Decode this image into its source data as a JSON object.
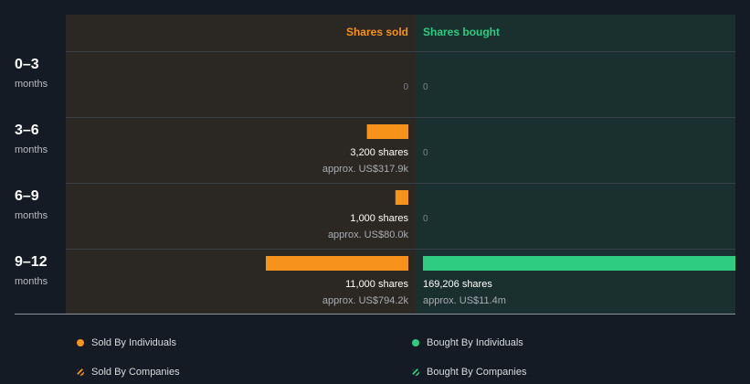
{
  "colors": {
    "background": "#151b24",
    "sold_panel": "#2b2722",
    "bought_panel": "#19302e",
    "sold": "#f7931a",
    "bought": "#2ecc80",
    "zero_text": "#7d8189",
    "shares_text": "#ffffff",
    "approx_text": "#a9adb4"
  },
  "chart_data": {
    "type": "bar",
    "headers": {
      "sold": "Shares sold",
      "bought": "Shares bought"
    },
    "categories": [
      {
        "period": "0–3",
        "unit": "months"
      },
      {
        "period": "3–6",
        "unit": "months"
      },
      {
        "period": "6–9",
        "unit": "months"
      },
      {
        "period": "9–12",
        "unit": "months"
      }
    ],
    "series": [
      {
        "name": "Shares sold",
        "values": [
          0,
          3200,
          1000,
          11000
        ],
        "shares_labels": [
          "0",
          "3,200 shares",
          "1,000 shares",
          "11,000 shares"
        ],
        "approx_labels": [
          "",
          "approx. US$317.9k",
          "approx. US$80.0k",
          "approx. US$794.2k"
        ]
      },
      {
        "name": "Shares bought",
        "values": [
          0,
          0,
          0,
          169206
        ],
        "shares_labels": [
          "0",
          "0",
          "0",
          "169,206 shares"
        ],
        "approx_labels": [
          "",
          "",
          "",
          "approx. US$11.4m"
        ]
      }
    ],
    "legend": [
      {
        "label": "Sold By Individuals",
        "color": "#f7931a",
        "style": "solid"
      },
      {
        "label": "Bought By Individuals",
        "color": "#2ecc80",
        "style": "solid"
      },
      {
        "label": "Sold By Companies",
        "color": "#f7931a",
        "style": "hatched"
      },
      {
        "label": "Bought By Companies",
        "color": "#2ecc80",
        "style": "hatched"
      }
    ]
  }
}
